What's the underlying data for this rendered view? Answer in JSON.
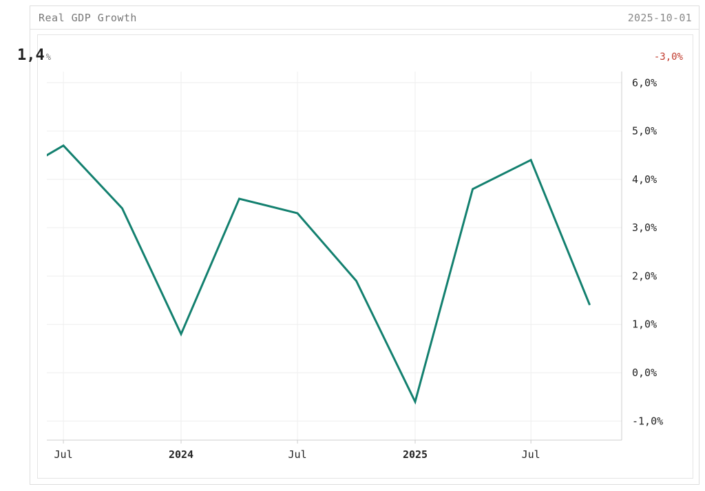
{
  "header": {
    "title": "Real GDP Growth",
    "date": "2025-10-01"
  },
  "summary": {
    "current_value": "1,4",
    "current_unit": "%",
    "change": "-3,0%"
  },
  "colors": {
    "line": "#13806f",
    "change_negative": "#c0392b",
    "grid": "#eeeeee"
  },
  "chart_data": {
    "type": "line",
    "title": "Real GDP Growth",
    "xlabel": "",
    "ylabel": "",
    "x": [
      "2023-04-01",
      "2023-07-01",
      "2023-10-01",
      "2024-01-01",
      "2024-04-01",
      "2024-07-01",
      "2024-10-01",
      "2025-01-01",
      "2025-04-01",
      "2025-07-01",
      "2025-10-01"
    ],
    "series": [
      {
        "values": [
          4.0,
          4.7,
          3.4,
          0.8,
          3.6,
          3.3,
          1.9,
          -0.6,
          3.8,
          4.4,
          1.4
        ]
      }
    ],
    "ylim": [
      -1.4,
      6.2
    ],
    "y_ticks": [
      6,
      5,
      4,
      3,
      2,
      1,
      0,
      -1
    ],
    "y_tick_labels": [
      "6,0%",
      "5,0%",
      "4,0%",
      "3,0%",
      "2,0%",
      "1,0%",
      "0,0%",
      "-1,0%"
    ],
    "x_tick_dates": [
      "2023-07-01",
      "2024-01-01",
      "2024-07-01",
      "2025-01-01",
      "2025-07-01"
    ],
    "x_tick_labels": [
      "Jul",
      "2024",
      "Jul",
      "2025",
      "Jul"
    ],
    "x_tick_bold": [
      false,
      true,
      false,
      true,
      false
    ],
    "grid": true,
    "y_axis_position": "right"
  }
}
